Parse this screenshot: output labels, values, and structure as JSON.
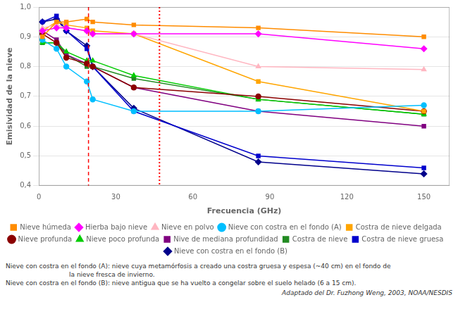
{
  "chart_data": {
    "type": "line",
    "xlabel": "Frecuencia (GHz)",
    "ylabel": "Emisividad de la nieve",
    "xlim": [
      0,
      160
    ],
    "ylim": [
      0.4,
      1.0
    ],
    "xticks": [
      0,
      30,
      60,
      90,
      120,
      150
    ],
    "yticks": [
      {
        "value": 0.4,
        "label": "0,4"
      },
      {
        "value": 0.5,
        "label": "0,5"
      },
      {
        "value": 0.6,
        "label": "0,6"
      },
      {
        "value": 0.7,
        "label": "0,7"
      },
      {
        "value": 0.8,
        "label": "0,8"
      },
      {
        "value": 0.9,
        "label": "0,9"
      },
      {
        "value": 1.0,
        "label": "1,0"
      }
    ],
    "grid": "y",
    "legend": "bottom",
    "x": [
      1.4,
      6.9,
      10.7,
      18.7,
      21.0,
      37.0,
      85.5,
      150.0
    ],
    "series": [
      {
        "name": "Nieve húmeda",
        "color": "#FF8C00",
        "marker": "square",
        "values": [
          0.9,
          0.95,
          0.95,
          0.96,
          0.95,
          0.94,
          0.93,
          0.9
        ]
      },
      {
        "name": "Hierba bajo nieve",
        "color": "#FF00FF",
        "marker": "diamond",
        "values": [
          0.92,
          0.93,
          0.93,
          0.92,
          0.91,
          0.91,
          0.91,
          0.86
        ]
      },
      {
        "name": "Nieve en polvo",
        "color": "#FFB6C1",
        "marker": "triangle",
        "values": [
          0.93,
          0.94,
          0.93,
          0.92,
          0.91,
          0.91,
          0.8,
          0.79
        ]
      },
      {
        "name": "Nieve con costra en el fondo (A)",
        "color": "#00BFFF",
        "marker": "circle",
        "values": [
          0.89,
          0.86,
          0.8,
          0.75,
          0.69,
          0.65,
          0.65,
          0.67
        ]
      },
      {
        "name": "Costra de nieve delgada",
        "color": "#FFA500",
        "marker": "square",
        "values": [
          0.92,
          0.95,
          0.94,
          0.93,
          0.92,
          0.91,
          0.75,
          0.65
        ]
      },
      {
        "name": "Nieve profunda",
        "color": "#8B0000",
        "marker": "circle",
        "values": [
          0.91,
          0.88,
          0.83,
          0.81,
          0.8,
          0.73,
          0.7,
          0.65
        ]
      },
      {
        "name": "Nieve poco profunda",
        "color": "#00CC00",
        "marker": "triangle",
        "values": [
          0.88,
          0.88,
          0.85,
          0.82,
          0.82,
          0.77,
          0.69,
          0.64
        ]
      },
      {
        "name": "Nive de mediana profundidad",
        "color": "#800080",
        "marker": "square",
        "values": [
          0.92,
          0.89,
          0.84,
          0.81,
          0.8,
          0.73,
          0.65,
          0.6
        ]
      },
      {
        "name": "Costra de nieve",
        "color": "#228B22",
        "marker": "square",
        "values": [
          0.88,
          0.88,
          0.84,
          0.8,
          0.8,
          0.76,
          0.69,
          0.64
        ]
      },
      {
        "name": "Costra de nieve gruesa",
        "color": "#0000CD",
        "marker": "square",
        "values": [
          0.95,
          0.97,
          0.92,
          0.86,
          0.8,
          0.65,
          0.5,
          0.46
        ]
      },
      {
        "name": "Nieve con costra en el fondo (B)",
        "color": "#00008B",
        "marker": "diamond",
        "values": [
          0.95,
          0.96,
          0.92,
          0.87,
          0.8,
          0.66,
          0.48,
          0.44
        ]
      }
    ],
    "annotations": [
      {
        "type": "vline",
        "x": 19.35,
        "color": "red",
        "line_style": "dashed"
      },
      {
        "type": "vline",
        "x": 47.0,
        "color": "red",
        "line_style": "dotted"
      }
    ],
    "footnotes": [
      "Nieve con costra en el fondo (A): nieve cuya metamórfosis a creado una costra gruesa y espesa (~40 cm) en el fondo de",
      "la nieve fresca de invierno.",
      "Nieve con costra en el fondo (B): nieve antigua que se ha vuelto a congelar sobre el suelo helado (6 a 15 cm)."
    ],
    "credit": "Adaptado del Dr. Fuzhong Weng, 2003, NOAA/NESDIS"
  }
}
